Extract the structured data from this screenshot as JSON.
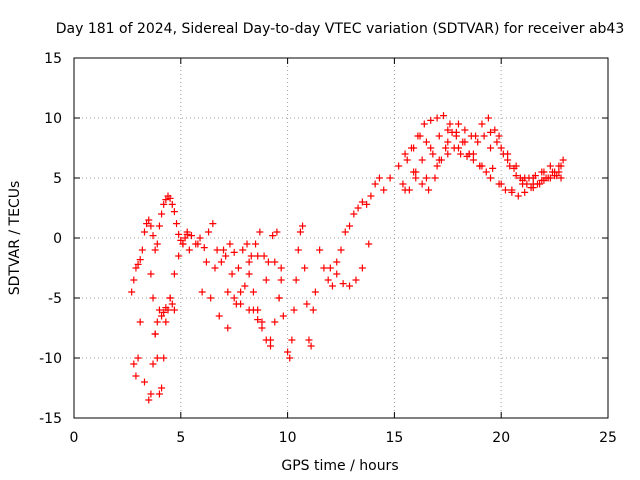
{
  "chart_data": {
    "type": "scatter",
    "title": "Day 181 of 2024, Sidereal Day-to-day VTEC variation (SDTVAR) for receiver ab43",
    "xlabel": "GPS time / hours",
    "ylabel": "SDTVAR / TECUs",
    "xlim": [
      0,
      25
    ],
    "ylim": [
      -15,
      15
    ],
    "xticks": [
      0,
      5,
      10,
      15,
      20,
      25
    ],
    "yticks": [
      -15,
      -10,
      -5,
      0,
      5,
      10,
      15
    ],
    "grid": true,
    "marker": "+",
    "marker_color": "#ff0000",
    "series": [
      {
        "name": "SDTVAR",
        "x": [
          2.7,
          2.8,
          2.9,
          3.0,
          3.1,
          3.2,
          3.3,
          3.4,
          3.5,
          3.6,
          3.7,
          3.8,
          3.9,
          4.0,
          4.1,
          4.2,
          4.3,
          4.4,
          4.5,
          4.6,
          4.7,
          4.8,
          4.9,
          5.0,
          5.1,
          5.2,
          5.3,
          2.8,
          2.9,
          3.0,
          3.1,
          3.3,
          3.5,
          3.6,
          3.7,
          3.8,
          3.9,
          4.0,
          4.1,
          4.2,
          4.3,
          4.4,
          4.5,
          4.6,
          4.7,
          3.6,
          3.7,
          3.8,
          3.9,
          4.0,
          4.1,
          4.2,
          4.3,
          4.5,
          4.7,
          4.9,
          5.1,
          5.3,
          5.5,
          5.7,
          5.9,
          6.1,
          6.3,
          6.5,
          6.7,
          6.9,
          7.1,
          7.3,
          7.5,
          7.7,
          7.9,
          8.1,
          8.3,
          8.5,
          8.7,
          8.9,
          9.1,
          9.3,
          9.5,
          9.7,
          5.4,
          5.8,
          6.2,
          6.6,
          7.0,
          7.4,
          7.8,
          8.2,
          8.6,
          9.0,
          9.4,
          6.0,
          6.4,
          6.8,
          7.2,
          7.6,
          8.0,
          8.4,
          8.8,
          9.2,
          9.6,
          8.2,
          8.4,
          8.6,
          8.8,
          9.0,
          9.2,
          9.4,
          9.6,
          9.7,
          9.8,
          7.2,
          7.5,
          7.8,
          8.2,
          8.6,
          10.0,
          10.1,
          10.2,
          10.3,
          10.4,
          10.5,
          10.6,
          10.7,
          10.8,
          10.9,
          11.0,
          11.1,
          11.2,
          11.3,
          11.5,
          11.7,
          11.9,
          12.1,
          12.3,
          12.5,
          12.7,
          12.9,
          13.1,
          13.3,
          13.5,
          13.7,
          13.9,
          14.1,
          14.3,
          14.5,
          12.0,
          12.3,
          12.6,
          12.9,
          13.2,
          13.5,
          13.8,
          14.8,
          15.2,
          15.5,
          15.8,
          16.1,
          16.4,
          16.7,
          17.0,
          17.3,
          17.6,
          17.9,
          18.2,
          18.5,
          18.8,
          19.1,
          19.4,
          19.7,
          20.0,
          20.3,
          20.6,
          20.9,
          21.2,
          21.5,
          21.8,
          22.1,
          22.4,
          22.7,
          22.9,
          15.5,
          15.9,
          16.3,
          16.7,
          17.1,
          17.5,
          17.9,
          18.3,
          18.7,
          19.1,
          19.5,
          19.9,
          20.3,
          20.7,
          21.1,
          21.5,
          21.9,
          22.3,
          22.7,
          15.6,
          15.9,
          16.2,
          16.5,
          16.8,
          17.1,
          17.4,
          17.7,
          18.0,
          18.3,
          18.6,
          18.9,
          19.2,
          19.5,
          19.8,
          20.1,
          20.4,
          20.7,
          21.0,
          21.3,
          21.6,
          21.9,
          22.2,
          22.5,
          22.8,
          16.0,
          16.5,
          17.0,
          17.5,
          18.0,
          18.5,
          19.0,
          19.5,
          20.0,
          20.5,
          21.0,
          21.5,
          22.0,
          22.5,
          15.4,
          15.7,
          16.0,
          16.3,
          16.6,
          16.9,
          17.2,
          17.5,
          17.8,
          18.1,
          18.4,
          18.7,
          19.0,
          19.3,
          19.6,
          19.9,
          20.2,
          20.5,
          20.8,
          21.1,
          21.4,
          21.7,
          22.0,
          22.3,
          22.6,
          22.8
        ],
        "y": [
          -4.5,
          -3.5,
          -2.5,
          -2.2,
          -1.8,
          -1.0,
          0.5,
          1.2,
          1.5,
          1.0,
          0.2,
          -1.0,
          -0.5,
          1.0,
          2.0,
          2.8,
          3.2,
          3.5,
          3.3,
          2.8,
          2.2,
          1.2,
          0.3,
          -0.2,
          -0.5,
          0.0,
          0.3,
          -10.5,
          -11.5,
          -10.0,
          -7.0,
          -12.0,
          -13.5,
          -13.0,
          -10.5,
          -8.0,
          -7.0,
          -6.0,
          -6.5,
          -6.2,
          -5.8,
          -6.0,
          -5.0,
          -5.5,
          -6.0,
          -3.0,
          -5.0,
          -8.0,
          -10.0,
          -13.0,
          -12.5,
          -10.0,
          -7.0,
          -5.0,
          -3.0,
          -1.5,
          -0.5,
          0.5,
          0.2,
          -0.5,
          0.0,
          -0.8,
          0.5,
          1.2,
          -1.0,
          -2.0,
          -1.5,
          -0.5,
          -1.2,
          -2.5,
          -1.0,
          -0.5,
          -1.5,
          -0.5,
          0.5,
          -1.5,
          -2.0,
          0.2,
          0.5,
          -2.5,
          -1.0,
          -0.5,
          -2.0,
          -2.5,
          -1.0,
          -3.0,
          -4.5,
          -2.0,
          -1.5,
          -3.5,
          -2.0,
          -4.5,
          -5.0,
          -6.5,
          -7.5,
          -5.5,
          -4.0,
          -6.0,
          -7.0,
          -8.5,
          -5.0,
          -3.0,
          -4.5,
          -6.0,
          -7.5,
          -8.5,
          -9.0,
          -7.0,
          -5.0,
          -3.5,
          -6.5,
          -4.5,
          -5.0,
          -5.5,
          -6.0,
          -6.8,
          -9.5,
          -10.0,
          -8.5,
          -6.0,
          -3.5,
          -1.0,
          0.5,
          1.0,
          -2.5,
          -5.5,
          -8.5,
          -9.0,
          -6.0,
          -4.5,
          -1.0,
          -2.5,
          -3.5,
          -4.0,
          -2.0,
          -1.0,
          0.5,
          1.0,
          2.0,
          2.5,
          3.0,
          2.8,
          3.5,
          4.5,
          5.0,
          4.0,
          -2.5,
          -3.0,
          -3.8,
          -4.0,
          -3.5,
          -2.5,
          -0.5,
          5.0,
          6.0,
          7.0,
          7.5,
          8.5,
          9.5,
          9.8,
          10.0,
          10.2,
          9.5,
          8.8,
          8.0,
          7.0,
          8.5,
          9.5,
          10.0,
          9.0,
          7.5,
          6.5,
          5.8,
          5.0,
          4.5,
          4.2,
          4.5,
          5.0,
          5.5,
          6.0,
          6.5,
          4.0,
          5.5,
          6.5,
          7.5,
          8.5,
          9.0,
          8.5,
          8.0,
          7.0,
          6.0,
          7.5,
          8.5,
          7.0,
          6.0,
          5.0,
          4.5,
          5.5,
          6.0,
          5.5,
          6.5,
          7.5,
          8.5,
          8.0,
          7.0,
          6.5,
          7.5,
          8.8,
          9.5,
          9.0,
          8.5,
          8.0,
          8.5,
          8.8,
          8.0,
          7.0,
          6.0,
          5.2,
          4.8,
          5.0,
          5.2,
          4.8,
          5.0,
          5.2,
          6.0,
          5.5,
          5.0,
          6.0,
          8.0,
          7.5,
          7.0,
          6.0,
          5.0,
          4.5,
          4.0,
          4.5,
          5.0,
          5.5,
          5.5,
          4.5,
          4.0,
          5.0,
          4.5,
          4.0,
          5.0,
          6.5,
          7.0,
          7.5,
          7.0,
          6.8,
          6.5,
          6.0,
          5.5,
          5.8,
          4.5,
          4.0,
          3.8,
          3.5,
          3.8,
          4.2,
          4.5,
          4.8,
          5.0,
          5.2,
          5.0
        ]
      }
    ]
  }
}
